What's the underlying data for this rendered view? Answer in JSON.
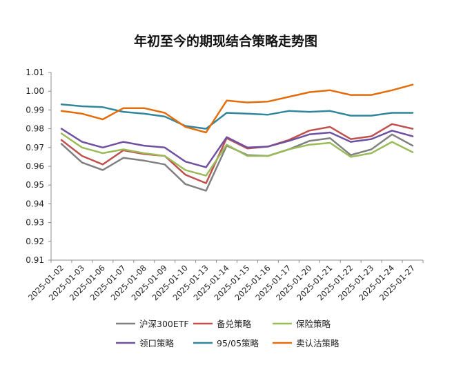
{
  "chart_data": {
    "type": "line",
    "title": "年初至今的期现结合策略走势图",
    "xlabel": "",
    "ylabel": "",
    "ylim": [
      0.91,
      1.01
    ],
    "yticks": [
      "0.91",
      "0.92",
      "0.93",
      "0.94",
      "0.95",
      "0.96",
      "0.97",
      "0.98",
      "0.99",
      "1.00",
      "1.01"
    ],
    "grid": false,
    "legend_position": "bottom",
    "categories": [
      "2025-01-02",
      "2025-01-03",
      "2025-01-06",
      "2025-01-07",
      "2025-01-08",
      "2025-01-09",
      "2025-01-10",
      "2025-01-13",
      "2025-01-14",
      "2025-01-15",
      "2025-01-16",
      "2025-01-17",
      "2025-01-20",
      "2025-01-21",
      "2025-01-22",
      "2025-01-23",
      "2025-01-24",
      "2025-01-27"
    ],
    "series": [
      {
        "name": "沪深300ETF",
        "color": "#808080",
        "values": [
          0.972,
          0.962,
          0.958,
          0.9645,
          0.963,
          0.961,
          0.9505,
          0.947,
          0.971,
          0.966,
          0.9655,
          0.969,
          0.9735,
          0.975,
          0.966,
          0.969,
          0.977,
          0.971
        ]
      },
      {
        "name": "备兑策略",
        "color": "#C0504D",
        "values": [
          0.974,
          0.9655,
          0.961,
          0.9685,
          0.9665,
          0.9655,
          0.9555,
          0.951,
          0.975,
          0.9695,
          0.9705,
          0.974,
          0.979,
          0.981,
          0.9745,
          0.976,
          0.9825,
          0.98
        ]
      },
      {
        "name": "保险策略",
        "color": "#9BBB59",
        "values": [
          0.9775,
          0.97,
          0.967,
          0.969,
          0.967,
          0.9655,
          0.958,
          0.955,
          0.9715,
          0.9655,
          0.9655,
          0.969,
          0.9715,
          0.9725,
          0.965,
          0.967,
          0.973,
          0.9675
        ]
      },
      {
        "name": "领口策略",
        "color": "#7050A0",
        "values": [
          0.98,
          0.973,
          0.97,
          0.973,
          0.971,
          0.97,
          0.9625,
          0.9595,
          0.9755,
          0.97,
          0.9705,
          0.9735,
          0.977,
          0.978,
          0.973,
          0.9745,
          0.979,
          0.976
        ]
      },
      {
        "name": "95/05策略",
        "color": "#31859C",
        "values": [
          0.993,
          0.992,
          0.9915,
          0.989,
          0.988,
          0.9865,
          0.9815,
          0.98,
          0.9885,
          0.988,
          0.9875,
          0.9895,
          0.989,
          0.9895,
          0.987,
          0.987,
          0.9885,
          0.9885
        ]
      },
      {
        "name": "卖认沽策略",
        "color": "#E46C0A",
        "values": [
          0.9895,
          0.988,
          0.985,
          0.991,
          0.991,
          0.9885,
          0.981,
          0.978,
          0.995,
          0.994,
          0.9945,
          0.997,
          0.9995,
          1.0005,
          0.998,
          0.998,
          1.0005,
          1.0035
        ]
      }
    ]
  }
}
